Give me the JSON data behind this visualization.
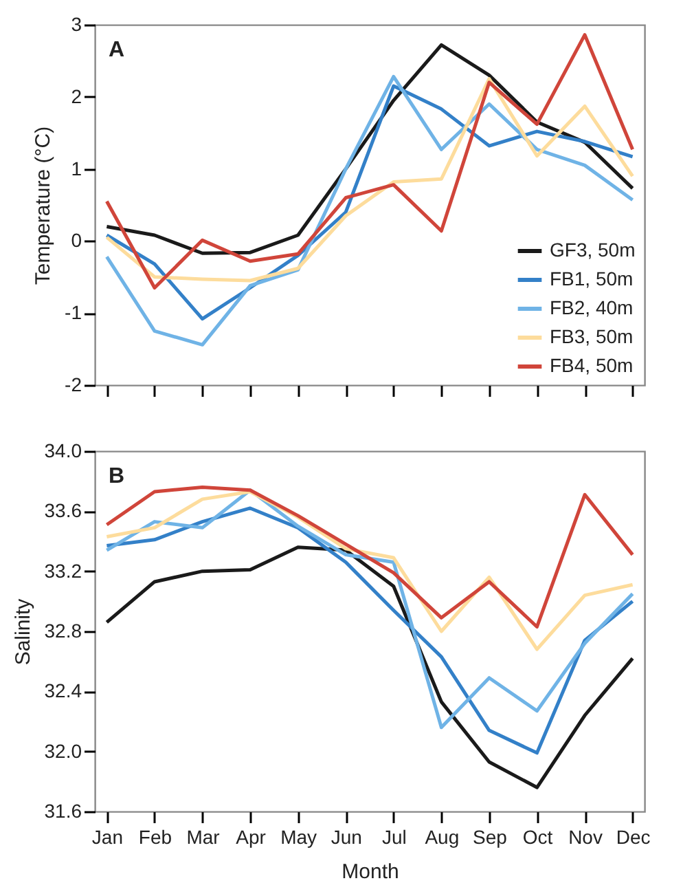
{
  "chart_data": [
    {
      "type": "line",
      "ylabel": "Temperature (°C)",
      "annotations": [
        "A"
      ],
      "categories": [
        null,
        null,
        null,
        null,
        null,
        null,
        null,
        null,
        null,
        null,
        null,
        null
      ],
      "ylim": [
        -2,
        3
      ],
      "yticks": [
        -2,
        -1,
        0,
        1,
        2,
        3
      ],
      "tick_labels": "y",
      "legend": "bottom right",
      "grid": false,
      "series": [
        {
          "name": "GF3, 50m",
          "color": "#1a1a1a",
          "values": [
            0.2,
            0.08,
            -0.17,
            -0.16,
            0.08,
            1.0,
            1.95,
            2.72,
            2.3,
            1.65,
            1.37,
            0.73
          ]
        },
        {
          "name": "FB1, 50m",
          "color": "#3380c8",
          "values": [
            0.08,
            -0.32,
            -1.08,
            -0.65,
            -0.2,
            0.4,
            2.15,
            1.83,
            1.32,
            1.52,
            1.38,
            1.17
          ]
        },
        {
          "name": "FB2, 40m",
          "color": "#6fb3e6",
          "values": [
            -0.22,
            -1.25,
            -1.44,
            -0.62,
            -0.4,
            1.0,
            2.28,
            1.27,
            1.9,
            1.27,
            1.05,
            0.57
          ]
        },
        {
          "name": "FB3, 50m",
          "color": "#fddc9c",
          "values": [
            0.05,
            -0.5,
            -0.53,
            -0.55,
            -0.38,
            0.35,
            0.82,
            0.86,
            2.25,
            1.18,
            1.87,
            0.9
          ]
        },
        {
          "name": "FB4, 50m",
          "color": "#d0453a",
          "values": [
            0.55,
            -0.65,
            0.01,
            -0.28,
            -0.18,
            0.6,
            0.78,
            0.14,
            2.2,
            1.62,
            2.86,
            1.27
          ]
        }
      ]
    },
    {
      "type": "line",
      "xlabel": "Month",
      "ylabel": "Salinity",
      "annotations": [
        "B"
      ],
      "categories": [
        "Jan",
        "Feb",
        "Mar",
        "Apr",
        "May",
        "Jun",
        "Jul",
        "Aug",
        "Sep",
        "Oct",
        "Nov",
        "Dec"
      ],
      "ylim": [
        31.6,
        34.0
      ],
      "yticks": [
        {
          "value": 31.6,
          "label": "31.6"
        },
        {
          "value": 32.0,
          "label": "32.0"
        },
        32.4,
        32.8,
        33.2,
        33.6,
        {
          "value": 34.0,
          "label": "34.0"
        }
      ],
      "grid": false,
      "series": [
        {
          "color": "#1a1a1a",
          "values": [
            32.86,
            33.13,
            33.2,
            33.21,
            33.36,
            33.34,
            33.1,
            32.33,
            31.93,
            31.76,
            32.24,
            32.62
          ]
        },
        {
          "color": "#3380c8",
          "values": [
            33.37,
            33.41,
            33.53,
            33.62,
            33.49,
            33.26,
            32.94,
            32.63,
            32.14,
            31.99,
            32.74,
            33.0
          ]
        },
        {
          "color": "#6fb3e6",
          "values": [
            33.34,
            33.53,
            33.49,
            33.74,
            33.5,
            33.31,
            33.26,
            32.16,
            32.49,
            32.27,
            32.72,
            33.05
          ]
        },
        {
          "color": "#fddc9c",
          "values": [
            33.43,
            33.49,
            33.68,
            33.73,
            33.56,
            33.35,
            33.29,
            32.8,
            33.16,
            32.68,
            33.04,
            33.11
          ]
        },
        {
          "color": "#d0453a",
          "values": [
            33.51,
            33.73,
            33.76,
            33.74,
            33.57,
            33.38,
            33.19,
            32.89,
            33.13,
            32.83,
            33.71,
            33.31
          ]
        }
      ]
    }
  ]
}
